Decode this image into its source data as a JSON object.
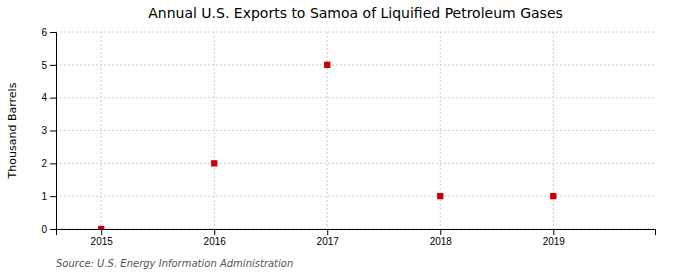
{
  "chart_data": {
    "type": "scatter",
    "title": "Annual U.S. Exports to Samoa of Liquified Petroleum Gases",
    "ylabel": "Thousand Barrels",
    "source": "Source: U.S. Energy Information Administration",
    "x": [
      2015,
      2016,
      2017,
      2018,
      2019
    ],
    "values": [
      0,
      2,
      5,
      1,
      1
    ],
    "color": "#cc0000",
    "marker": "square",
    "xlim": [
      2014.6,
      2019.9
    ],
    "ylim": [
      0,
      6
    ],
    "xticks": [
      2015,
      2016,
      2017,
      2018,
      2019
    ],
    "yticks": [
      0,
      1,
      2,
      3,
      4,
      5,
      6
    ],
    "grid": true
  }
}
